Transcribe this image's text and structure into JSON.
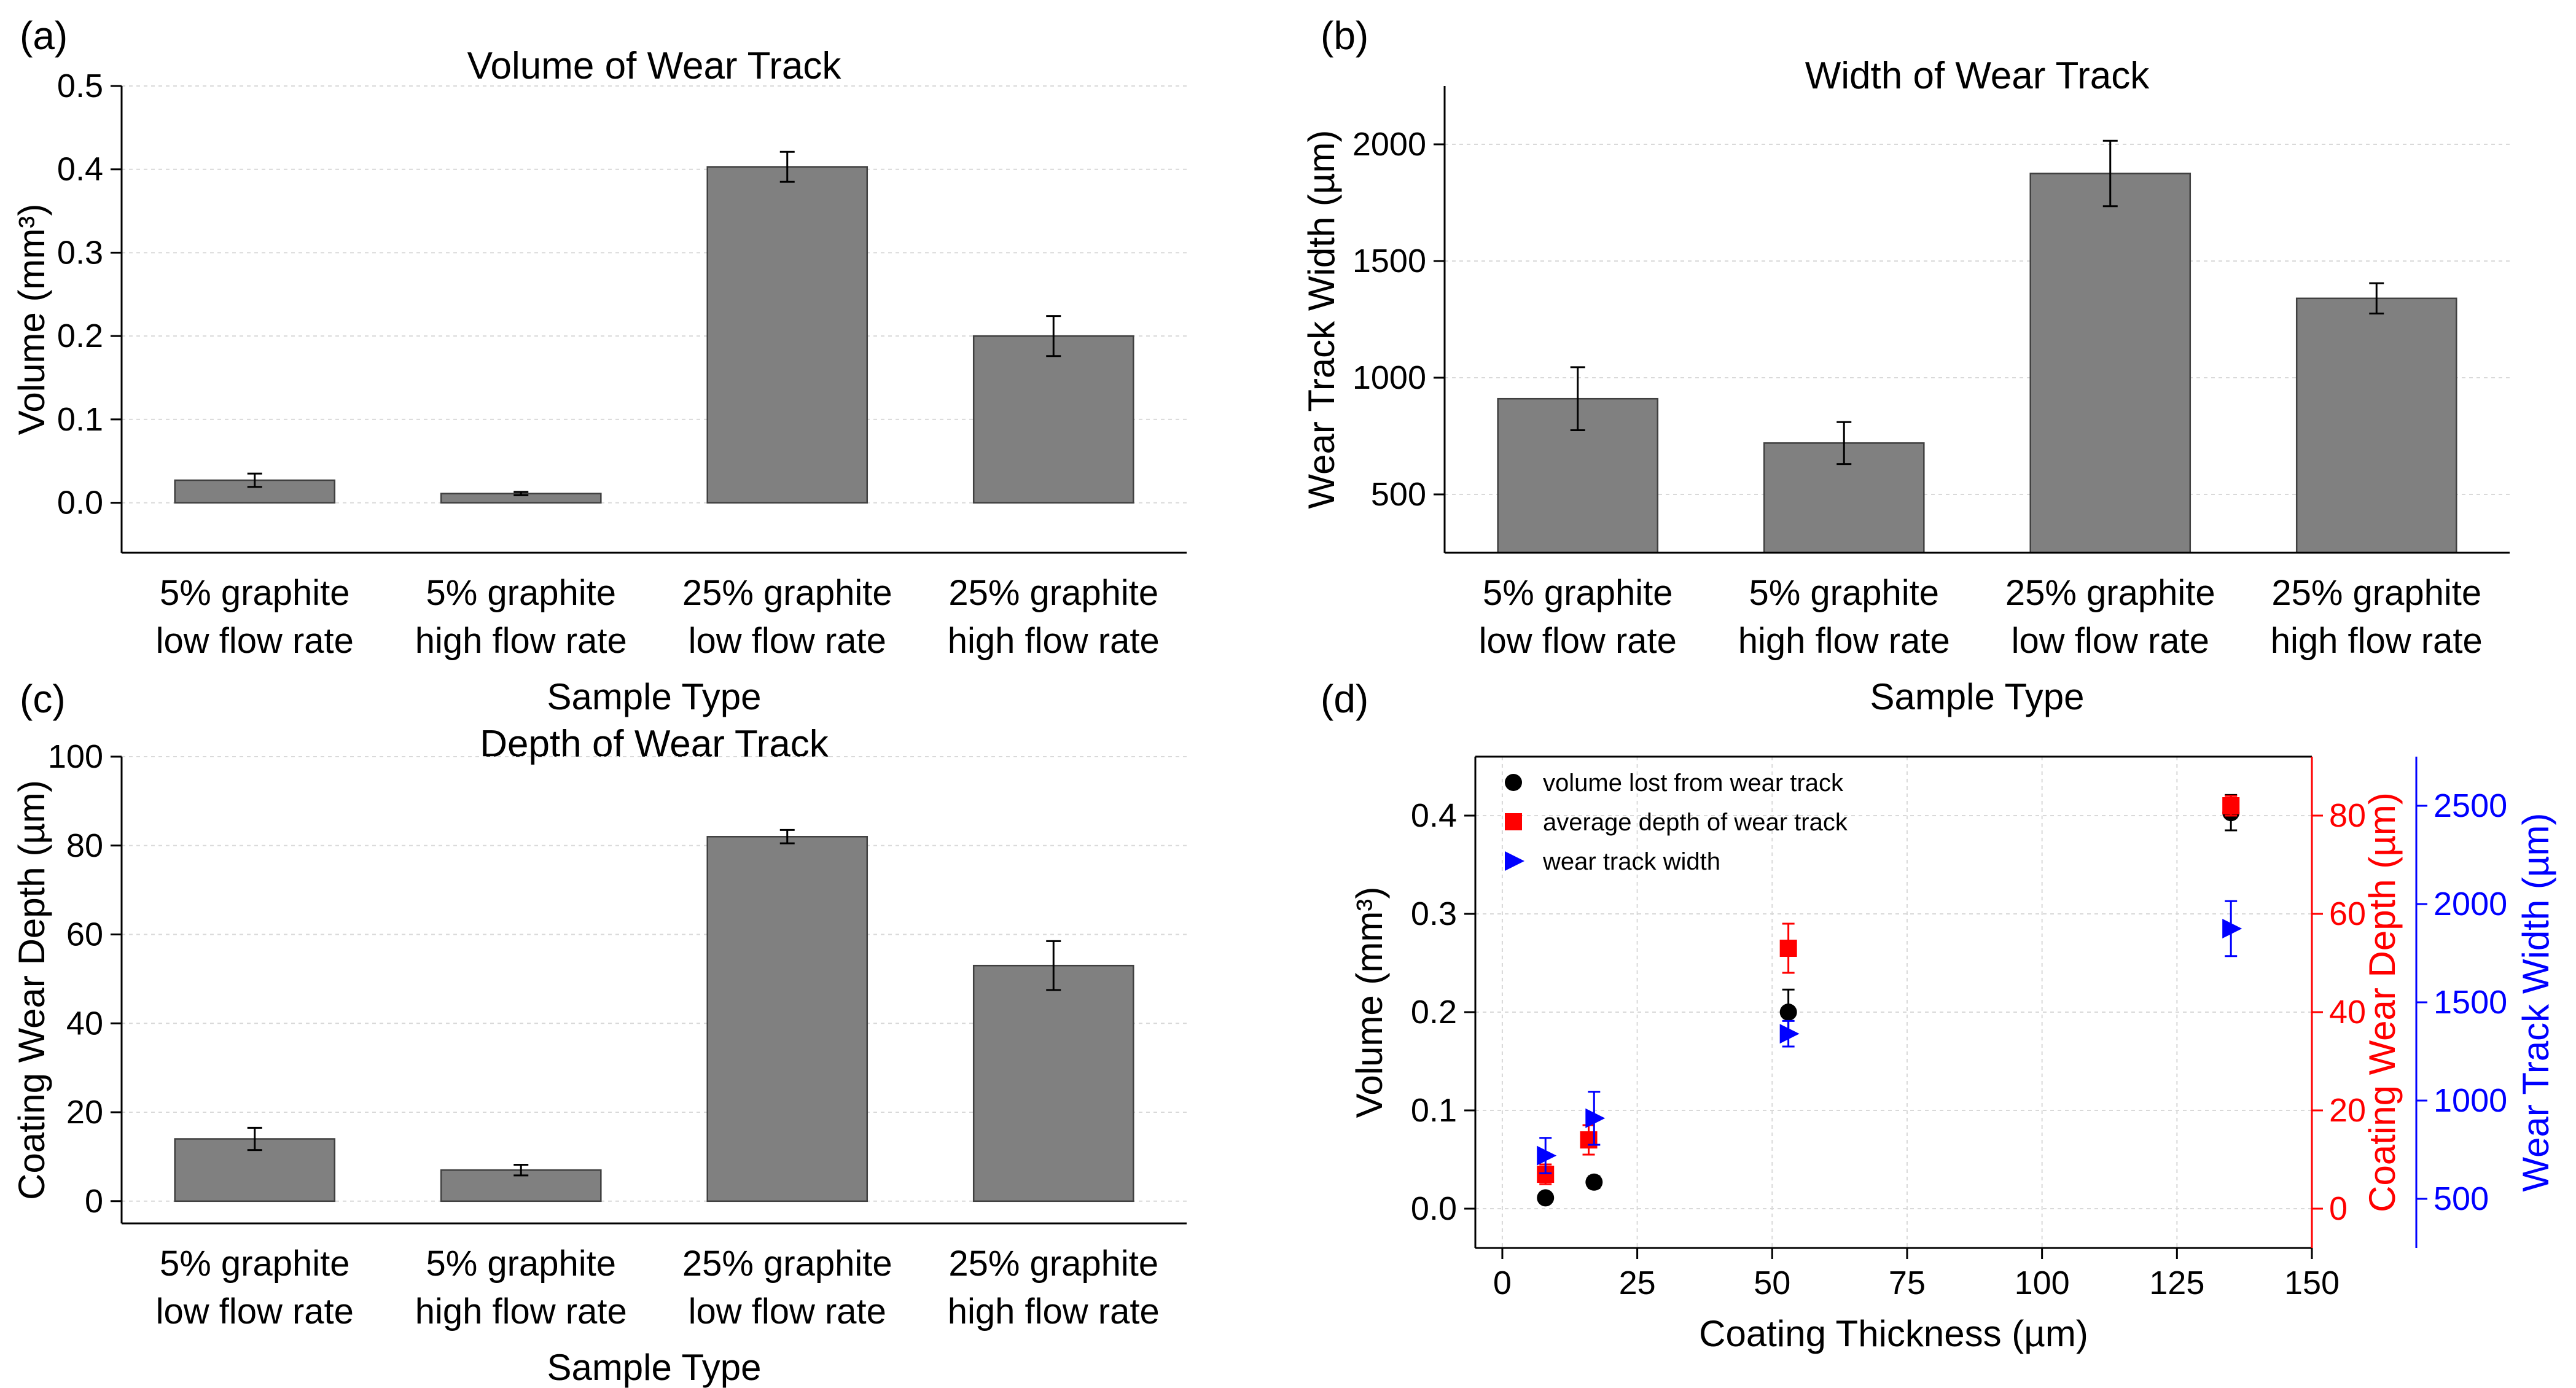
{
  "chart_data": [
    {
      "panel": "(a)",
      "type": "bar",
      "title": "Volume of Wear Track",
      "xlabel": "Sample Type",
      "ylabel": "Volume (mm³)",
      "ylim": [
        -0.06,
        0.5
      ],
      "yticks": [
        "0.0",
        "0.1",
        "0.2",
        "0.3",
        "0.4",
        "0.5"
      ],
      "ytick_values": [
        0,
        0.1,
        0.2,
        0.3,
        0.4,
        0.5
      ],
      "grid": true,
      "categories": [
        [
          "5% graphite",
          "low flow rate"
        ],
        [
          "5% graphite",
          "high flow rate"
        ],
        [
          "25% graphite",
          "low flow rate"
        ],
        [
          "25% graphite",
          "high flow rate"
        ]
      ],
      "values": [
        0.027,
        0.011,
        0.403,
        0.2
      ],
      "errors": [
        0.008,
        0.002,
        0.018,
        0.024
      ]
    },
    {
      "panel": "(b)",
      "type": "bar",
      "title": "Width of Wear Track",
      "xlabel": "Sample Type",
      "ylabel": "Wear Track Width (µm)",
      "ylim": [
        250,
        2250
      ],
      "yticks": [
        "500",
        "1000",
        "1500",
        "2000"
      ],
      "ytick_values": [
        500,
        1000,
        1500,
        2000
      ],
      "grid": true,
      "categories": [
        [
          "5% graphite",
          "low flow rate"
        ],
        [
          "5% graphite",
          "high flow rate"
        ],
        [
          "25% graphite",
          "low flow rate"
        ],
        [
          "25% graphite",
          "high flow rate"
        ]
      ],
      "values": [
        910,
        720,
        1875,
        1340
      ],
      "errors": [
        135,
        90,
        140,
        65
      ]
    },
    {
      "panel": "(c)",
      "type": "bar",
      "title": "Depth of Wear Track",
      "xlabel": "Sample Type",
      "ylabel": "Coating Wear Depth (µm)",
      "ylim": [
        -5,
        100
      ],
      "yticks": [
        "0",
        "20",
        "40",
        "60",
        "80",
        "100"
      ],
      "ytick_values": [
        0,
        20,
        40,
        60,
        80,
        100
      ],
      "grid": true,
      "categories": [
        [
          "5% graphite",
          "low flow rate"
        ],
        [
          "5% graphite",
          "high flow rate"
        ],
        [
          "25% graphite",
          "low flow rate"
        ],
        [
          "25% graphite",
          "high flow rate"
        ]
      ],
      "values": [
        14,
        7,
        82,
        53
      ],
      "errors": [
        2.5,
        1.2,
        1.5,
        5.5
      ]
    },
    {
      "panel": "(d)",
      "type": "scatter",
      "xlabel": "Coating Thickness (µm)",
      "xlim": [
        -5,
        150
      ],
      "xticks": [
        "0",
        "25",
        "50",
        "75",
        "100",
        "125",
        "150"
      ],
      "xtick_values": [
        0,
        25,
        50,
        75,
        100,
        125,
        150
      ],
      "grid": true,
      "legend_position": "top-left",
      "axes": {
        "left": {
          "label": "Volume (mm³)",
          "color": "#000000",
          "ylim": [
            -0.04,
            0.46
          ],
          "ticks": [
            "0.0",
            "0.1",
            "0.2",
            "0.3",
            "0.4"
          ],
          "tick_values": [
            0,
            0.1,
            0.2,
            0.3,
            0.4
          ]
        },
        "right1": {
          "label": "Coating Wear Depth (µm)",
          "color": "#ff0000",
          "ylim": [
            -8,
            92
          ],
          "ticks": [
            "0",
            "20",
            "40",
            "60",
            "80"
          ],
          "tick_values": [
            0,
            20,
            40,
            60,
            80
          ]
        },
        "right2": {
          "label": "Wear Track Width (µm)",
          "color": "#0000ff",
          "ylim": [
            250,
            2750
          ],
          "ticks": [
            "500",
            "1000",
            "1500",
            "2000",
            "2500"
          ],
          "tick_values": [
            500,
            1000,
            1500,
            2000,
            2500
          ]
        }
      },
      "series": [
        {
          "name": "volume lost from wear track",
          "axis": "left",
          "color": "#000000",
          "marker": "circle",
          "x": [
            8,
            17,
            53,
            135
          ],
          "y": [
            0.011,
            0.027,
            0.2,
            0.403
          ],
          "err": [
            0.003,
            0.006,
            0.023,
            0.018
          ]
        },
        {
          "name": "average depth of wear track",
          "axis": "right1",
          "color": "#ff0000",
          "marker": "square",
          "x": [
            8,
            16,
            53,
            135
          ],
          "y": [
            7,
            14,
            53,
            82
          ],
          "err": [
            2,
            3,
            5,
            2
          ]
        },
        {
          "name": "wear track width",
          "axis": "right2",
          "color": "#0000ff",
          "marker": "triangle-right",
          "x": [
            8,
            17,
            53,
            135
          ],
          "y": [
            720,
            910,
            1340,
            1875
          ],
          "err": [
            90,
            135,
            65,
            140
          ]
        }
      ]
    }
  ]
}
